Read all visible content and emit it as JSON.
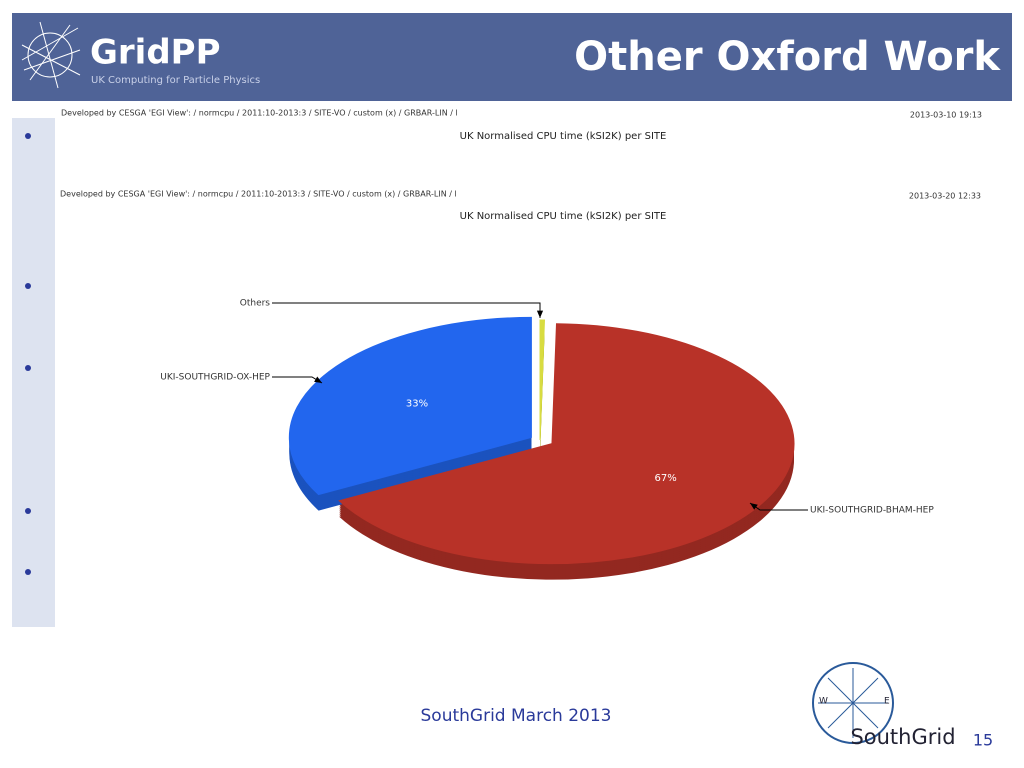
{
  "slide": {
    "title": "Other Oxford Work",
    "logo": "GridPP",
    "logo_subtitle": "UK Computing for Particle Physics",
    "footer": "SouthGrid March 2013",
    "page_number": "15",
    "footer_logo": "SouthGrid",
    "compass": [
      "W",
      "E"
    ]
  },
  "background_chart": {
    "header": "Developed by CESGA 'EGI View': / normcpu / 2011:10-2013:3 / SITE-VO / custom (x) / GRBAR-LIN / l",
    "date": "2013-03-10 19:13",
    "title": "UK Normalised CPU time (kSI2K) per SITE"
  },
  "chart_data": {
    "type": "pie",
    "header": "Developed by CESGA 'EGI View': / normcpu / 2011:10-2013:3 / SITE-VO / custom (x) / GRBAR-LIN / l",
    "date": "2013-03-20 12:33",
    "title": "UK Normalised CPU time (kSI2K) per SITE",
    "categories": [
      "Others",
      "UKI-SOUTHGRID-BHAM-HEP",
      "UKI-SOUTHGRID-OX-HEP"
    ],
    "values": [
      0.3,
      67,
      33
    ],
    "value_labels": [
      null,
      "67%",
      "33%"
    ],
    "colors": [
      "#d8dc40",
      "#b83228",
      "#2266ee"
    ]
  }
}
